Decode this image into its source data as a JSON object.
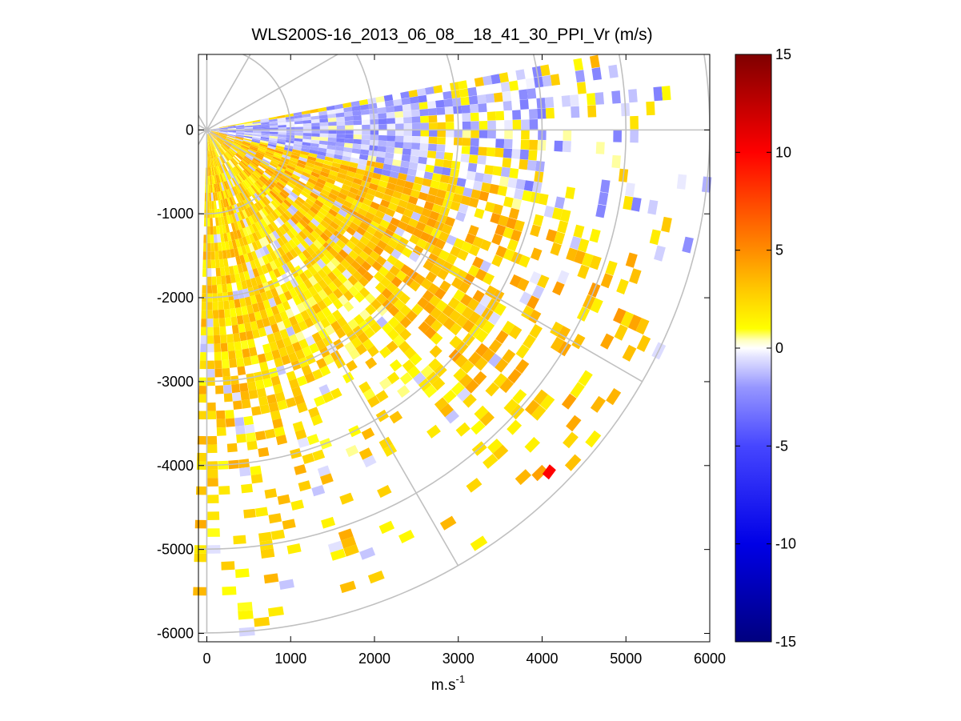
{
  "chart_data": {
    "type": "heatmap",
    "title": "WLS200S-16_2013_06_08__18_41_30_PPI_Vr (m/s)",
    "xlabel": "m.s",
    "xlabel_superscript": "-1",
    "ylabel": "",
    "xlim": [
      -100,
      6000
    ],
    "ylim": [
      -6100,
      900
    ],
    "xticks": [
      "0",
      "1000",
      "2000",
      "3000",
      "4000",
      "5000",
      "6000"
    ],
    "yticks": [
      "0",
      "-1000",
      "-2000",
      "-3000",
      "-4000",
      "-5000",
      "-6000"
    ],
    "xtick_values": [
      0,
      1000,
      2000,
      3000,
      4000,
      5000,
      6000
    ],
    "ytick_values": [
      0,
      -1000,
      -2000,
      -3000,
      -4000,
      -5000,
      -6000
    ],
    "polar_grid": {
      "origin": [
        0,
        0
      ],
      "range_rings": [
        1000,
        2000,
        3000,
        4000,
        5000,
        6000
      ],
      "azimuth_spokes_deg": [
        0,
        30,
        60,
        90,
        120,
        150,
        180,
        210,
        240,
        270,
        300,
        330
      ],
      "grid_color": "#c0c0c0"
    },
    "sector": {
      "azimuth_min_deg": 80,
      "azimuth_max_deg": 182,
      "max_range_m": 6000,
      "range_gate_m": 100
    },
    "velocity_zones": [
      {
        "from_deg": 80,
        "to_deg": 103,
        "dominant": "negative",
        "typical_vr": -1.5
      },
      {
        "from_deg": 103,
        "to_deg": 135,
        "dominant": "positive",
        "typical_vr": 3.0
      },
      {
        "from_deg": 135,
        "to_deg": 160,
        "dominant": "positive",
        "typical_vr": 2.0
      },
      {
        "from_deg": 160,
        "to_deg": 182,
        "dominant": "positive",
        "typical_vr": 2.5
      }
    ],
    "outliers": [
      {
        "x": 4080,
        "y": -4080,
        "vr": 10
      }
    ],
    "colorbar": {
      "vmin": -15,
      "vmax": 15,
      "ticks": [
        "15",
        "10",
        "5",
        "0",
        "-5",
        "-10",
        "-15"
      ],
      "tick_values": [
        15,
        10,
        5,
        0,
        -5,
        -10,
        -15
      ],
      "colormap": [
        [
          -15,
          "#00007f"
        ],
        [
          -10,
          "#0000e6"
        ],
        [
          -5,
          "#4646ff"
        ],
        [
          -2,
          "#9696ff"
        ],
        [
          -0.4,
          "#e6e6ff"
        ],
        [
          0,
          "#ffffff"
        ],
        [
          0.4,
          "#ffffc0"
        ],
        [
          1,
          "#ffff00"
        ],
        [
          3,
          "#ffc800"
        ],
        [
          5,
          "#ff8c00"
        ],
        [
          10,
          "#ff0000"
        ],
        [
          15,
          "#7f0000"
        ]
      ]
    }
  }
}
